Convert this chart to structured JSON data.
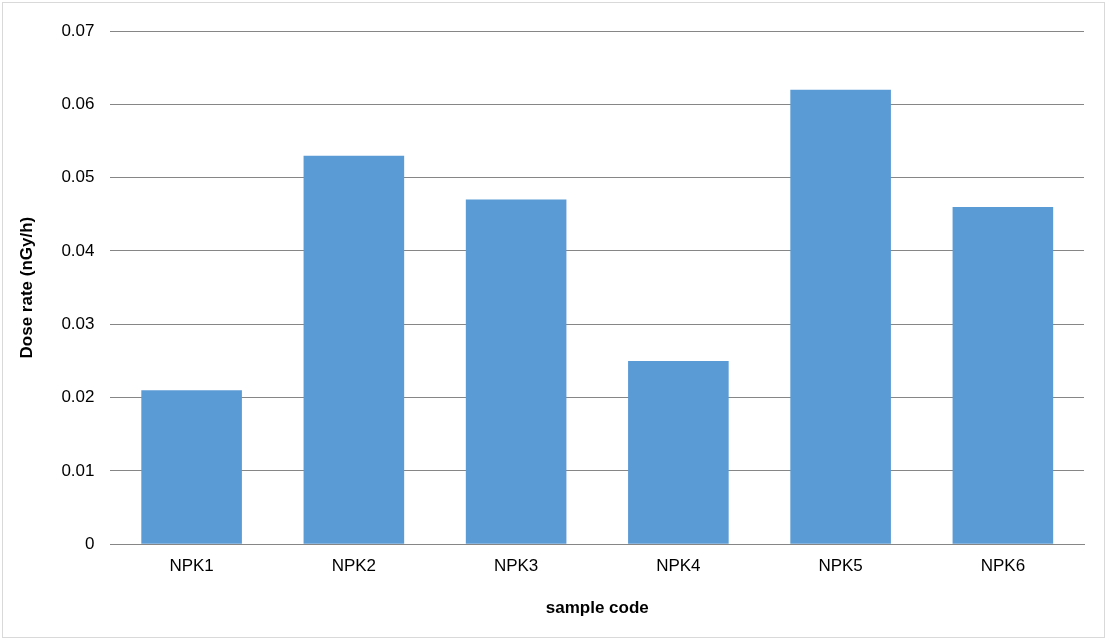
{
  "chart_data": {
    "type": "bar",
    "xlabel": "sample code",
    "ylabel": "Dose rate (nGy/h)",
    "categories": [
      "NPK1",
      "NPK2",
      "NPK3",
      "NPK4",
      "NPK5",
      "NPK6"
    ],
    "values": [
      0.021,
      0.053,
      0.047,
      0.025,
      0.062,
      0.046
    ],
    "color": "#5b9bd5",
    "ylim": [
      0,
      0.07
    ],
    "yticks": [
      0,
      0.01,
      0.02,
      0.03,
      0.04,
      0.05,
      0.06,
      0.07
    ],
    "grid": "y",
    "legend": false
  }
}
